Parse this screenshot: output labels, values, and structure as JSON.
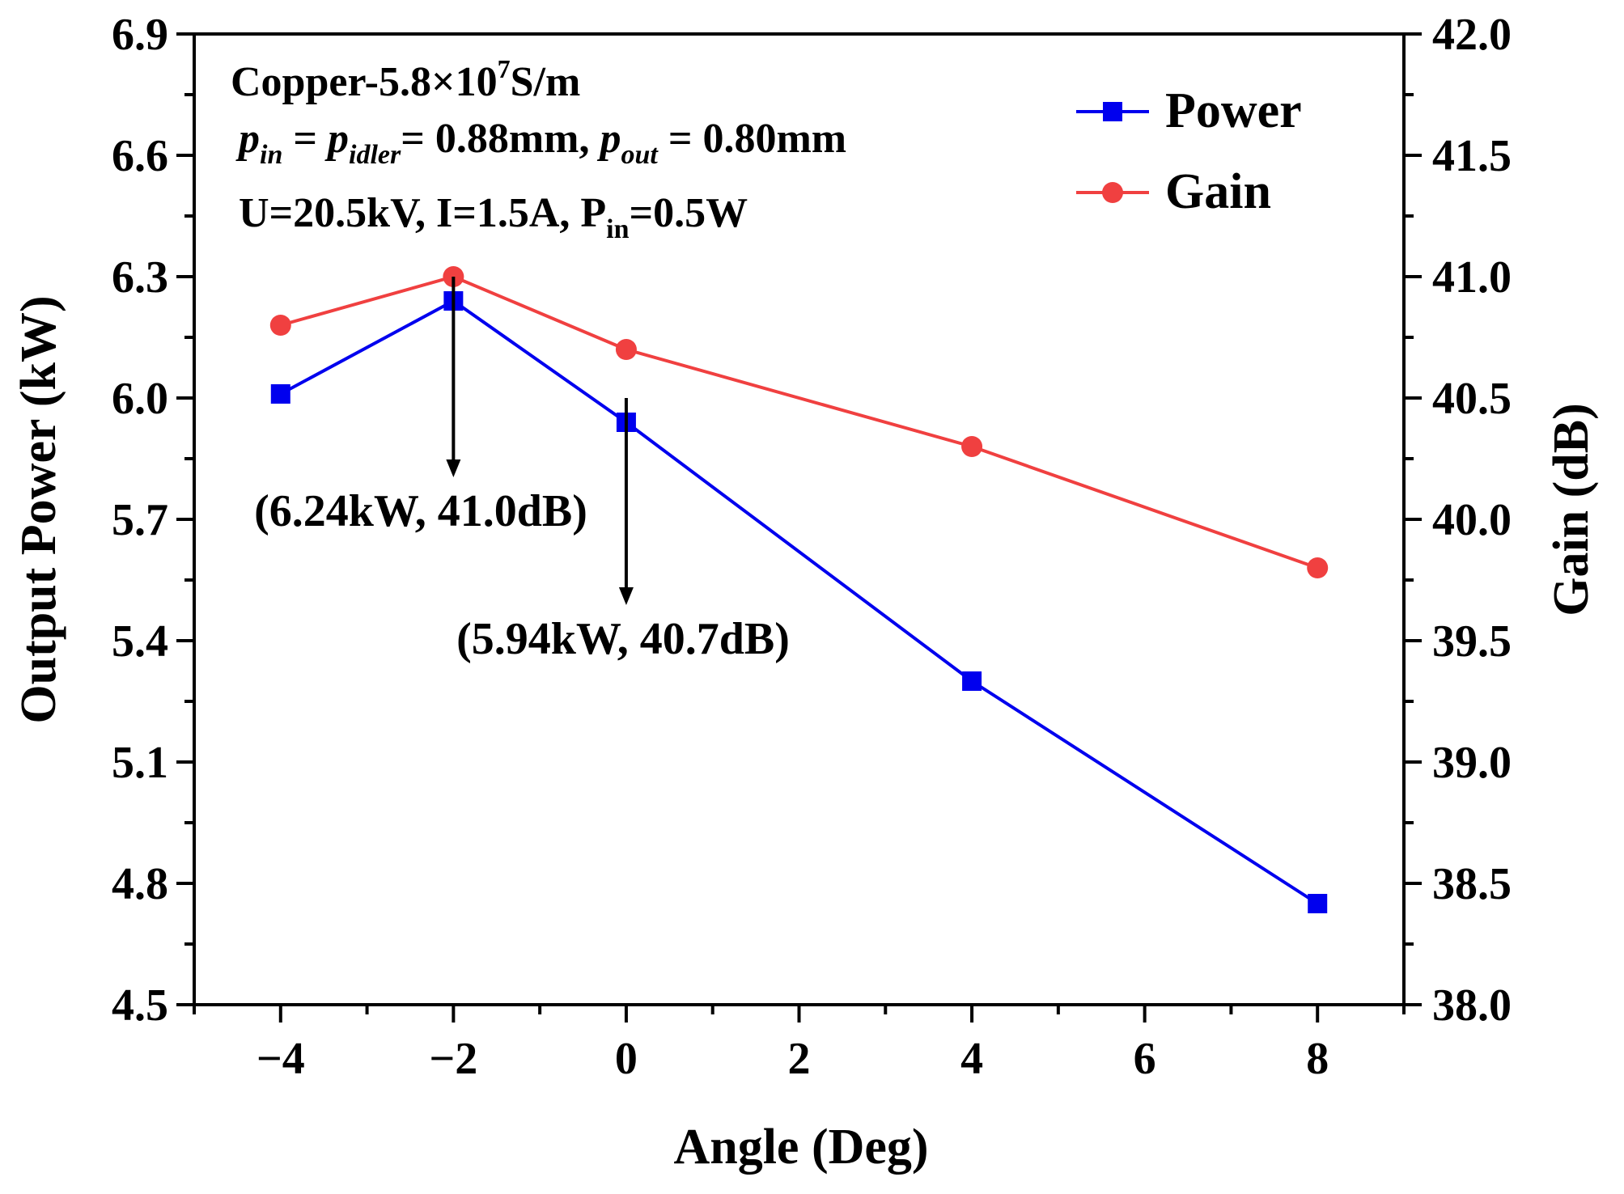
{
  "chart_data": {
    "type": "line",
    "xlabel": "Angle (Deg)",
    "ylabel_left": "Output Power (kW)",
    "ylabel_right": "Gain (dB)",
    "xlim": [
      -5,
      9
    ],
    "ylim_left": [
      4.5,
      6.9
    ],
    "ylim_right": [
      38.0,
      42.0
    ],
    "x_ticks": [
      -4,
      -2,
      0,
      2,
      4,
      6,
      8
    ],
    "x_tick_labels": [
      "−4",
      "−2",
      "0",
      "2",
      "4",
      "6",
      "8"
    ],
    "y_left_ticks": [
      4.5,
      4.8,
      5.1,
      5.4,
      5.7,
      6.0,
      6.3,
      6.6,
      6.9
    ],
    "y_left_tick_labels": [
      "4.5",
      "4.8",
      "5.1",
      "5.4",
      "5.7",
      "6.0",
      "6.3",
      "6.6",
      "6.9"
    ],
    "y_right_ticks": [
      38.0,
      38.5,
      39.0,
      39.5,
      40.0,
      40.5,
      41.0,
      41.5,
      42.0
    ],
    "y_right_tick_labels": [
      "38.0",
      "38.5",
      "39.0",
      "39.5",
      "40.0",
      "40.5",
      "41.0",
      "41.5",
      "42.0"
    ],
    "series": [
      {
        "name": "Power",
        "axis": "left",
        "color": "#0000ee",
        "marker": "square",
        "x": [
          -4,
          -2,
          0,
          4,
          8
        ],
        "y": [
          6.01,
          6.24,
          5.94,
          5.3,
          4.75
        ]
      },
      {
        "name": "Gain",
        "axis": "right",
        "color": "#f04040",
        "marker": "circle",
        "x": [
          -4,
          -2,
          0,
          4,
          8
        ],
        "y": [
          40.8,
          41.0,
          40.7,
          40.3,
          39.8
        ]
      }
    ],
    "legend": {
      "position": "top-right",
      "items": [
        "Power",
        "Gain"
      ]
    },
    "text_block": {
      "line1_main": "Copper-5.8×10",
      "line1_sup": "7",
      "line1_tail": "S/m",
      "line2_p1": "p",
      "line2_s1": "in",
      "line2_eq1": " = ",
      "line2_p2": "p",
      "line2_s2": "idler",
      "line2_mid": "= 0.88mm, ",
      "line2_p3": "p",
      "line2_s3": "out",
      "line2_end": " = 0.80mm",
      "line3_main": "U=20.5kV, I=1.5A, P",
      "line3_sub": "in",
      "line3_tail": "=0.5W"
    },
    "annotations": [
      {
        "text": "(6.24kW, 41.0dB)",
        "x": -2,
        "y_left": 6.24
      },
      {
        "text": "(5.94kW, 40.7dB)",
        "x": 0,
        "y_left": 5.94
      }
    ],
    "grid": false
  }
}
